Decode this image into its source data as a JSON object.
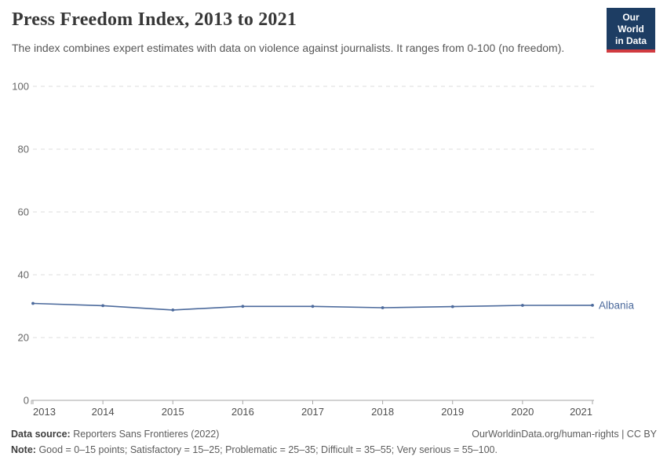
{
  "header": {
    "title": "Press Freedom Index, 2013 to 2021",
    "subtitle": "The index combines expert estimates with data on violence against journalists. It ranges from 0-100 (no freedom)."
  },
  "logo": {
    "line1": "Our World",
    "line2": "in Data",
    "bg_color": "#1d3d63",
    "accent_color": "#d13b40"
  },
  "chart_data": {
    "type": "line",
    "title": "Press Freedom Index, 2013 to 2021",
    "x": [
      2013,
      2014,
      2015,
      2016,
      2017,
      2018,
      2019,
      2020,
      2021
    ],
    "series": [
      {
        "name": "Albania",
        "color": "#4C6A9C",
        "values": [
          30.88,
          30.14,
          28.77,
          29.92,
          29.92,
          29.49,
          29.84,
          30.25,
          30.27
        ]
      }
    ],
    "xlabel": "",
    "ylabel": "",
    "ylim": [
      0,
      100
    ],
    "yticks": [
      0,
      20,
      40,
      60,
      80,
      100
    ],
    "grid": "horizontal-dashed",
    "grid_color": "#dcdcdc",
    "axis_color": "#a6a6a6",
    "ytick_label_color": "#666666",
    "xtick_label_color": "#4f4f4f",
    "legend_position": "end-of-line-label"
  },
  "footer": {
    "data_source_label": "Data source:",
    "data_source_value": "Reporters Sans Frontieres (2022)",
    "attribution": "OurWorldinData.org/human-rights | CC BY",
    "note_label": "Note:",
    "note_value": "Good = 0–15 points; Satisfactory = 15–25; Problematic = 25–35; Difficult = 35–55; Very serious = 55–100."
  }
}
